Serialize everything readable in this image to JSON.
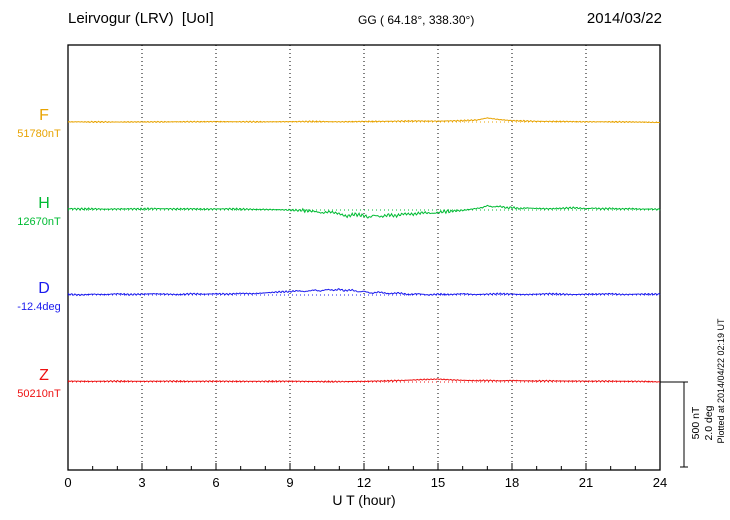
{
  "chart_data": {
    "type": "line",
    "title": "Leirvogur (LRV)  [UoI]",
    "subtitle_coords": "GG ( 64.18°, 338.30°)",
    "date": "2014/03/22",
    "plotted_note": "Plotted at 2014/04/22 02:19 UT",
    "xlabel": "U T (hour)",
    "x_range": [
      0,
      24
    ],
    "x_ticks": [
      0,
      3,
      6,
      9,
      12,
      15,
      18,
      21,
      24
    ],
    "grid": "dotted-vertical-every-3h",
    "legend_position": "left-of-traces",
    "scale_bar": {
      "line1": "500 nT",
      "line2": "2.0 deg",
      "nT": 500,
      "deg": 2.0
    },
    "series": [
      {
        "name": "F",
        "unit": "nT",
        "baseline": 51780,
        "value_label": "51780nT",
        "color": "#e8a300",
        "points": [
          [
            0,
            1
          ],
          [
            2,
            0
          ],
          [
            4,
            1
          ],
          [
            6,
            2
          ],
          [
            8,
            1
          ],
          [
            10,
            3
          ],
          [
            11,
            1
          ],
          [
            12,
            3
          ],
          [
            13,
            4
          ],
          [
            14,
            6
          ],
          [
            15,
            5
          ],
          [
            16,
            8
          ],
          [
            16.6,
            12
          ],
          [
            17,
            24
          ],
          [
            17.5,
            14
          ],
          [
            18,
            8
          ],
          [
            19,
            4
          ],
          [
            20,
            3
          ],
          [
            21,
            1
          ],
          [
            22,
            1
          ],
          [
            23,
            0
          ],
          [
            24,
            -3
          ]
        ]
      },
      {
        "name": "H",
        "unit": "nT",
        "baseline": 12670,
        "value_label": "12670nT",
        "color": "#00bb33",
        "points": [
          [
            0,
            8
          ],
          [
            0.5,
            6
          ],
          [
            1,
            7
          ],
          [
            1.5,
            5
          ],
          [
            2,
            6
          ],
          [
            2.5,
            7
          ],
          [
            3,
            6
          ],
          [
            3.5,
            8
          ],
          [
            4,
            7
          ],
          [
            4.5,
            6
          ],
          [
            5,
            7
          ],
          [
            5.5,
            5
          ],
          [
            6,
            6
          ],
          [
            6.5,
            7
          ],
          [
            7,
            5
          ],
          [
            7.5,
            4
          ],
          [
            8,
            3
          ],
          [
            8.5,
            2
          ],
          [
            9,
            0
          ],
          [
            9.5,
            -3
          ],
          [
            10,
            -8
          ],
          [
            10.3,
            -18
          ],
          [
            10.6,
            -10
          ],
          [
            11,
            -22
          ],
          [
            11.3,
            -38
          ],
          [
            11.6,
            -25
          ],
          [
            12,
            -33
          ],
          [
            12.2,
            -45
          ],
          [
            12.4,
            -30
          ],
          [
            12.7,
            -40
          ],
          [
            13,
            -28
          ],
          [
            13.3,
            -35
          ],
          [
            13.6,
            -22
          ],
          [
            14,
            -25
          ],
          [
            14.4,
            -15
          ],
          [
            14.8,
            -20
          ],
          [
            15.2,
            -10
          ],
          [
            15.6,
            -6
          ],
          [
            16,
            -2
          ],
          [
            16.4,
            6
          ],
          [
            16.8,
            14
          ],
          [
            17,
            26
          ],
          [
            17.2,
            18
          ],
          [
            17.5,
            22
          ],
          [
            17.8,
            12
          ],
          [
            18,
            15
          ],
          [
            18.3,
            8
          ],
          [
            18.6,
            12
          ],
          [
            19,
            9
          ],
          [
            19.5,
            7
          ],
          [
            20,
            10
          ],
          [
            20.5,
            13
          ],
          [
            21,
            8
          ],
          [
            21.3,
            11
          ],
          [
            21.6,
            7
          ],
          [
            22,
            9
          ],
          [
            22.4,
            6
          ],
          [
            22.8,
            8
          ],
          [
            23.2,
            5
          ],
          [
            23.6,
            6
          ],
          [
            24,
            3
          ]
        ]
      },
      {
        "name": "D",
        "unit": "deg",
        "baseline": -12.4,
        "value_label": "-12.4deg",
        "color": "#1a1aee",
        "points": [
          [
            0,
            0.02
          ],
          [
            0.5,
            0.0
          ],
          [
            1,
            0.02
          ],
          [
            1.5,
            0.01
          ],
          [
            2,
            0.03
          ],
          [
            2.5,
            0.01
          ],
          [
            3,
            0.02
          ],
          [
            3.5,
            0.03
          ],
          [
            4,
            0.02
          ],
          [
            4.5,
            0.01
          ],
          [
            5,
            0.03
          ],
          [
            5.5,
            0.02
          ],
          [
            6,
            0.03
          ],
          [
            6.5,
            0.02
          ],
          [
            7,
            0.04
          ],
          [
            7.5,
            0.03
          ],
          [
            8,
            0.05
          ],
          [
            8.5,
            0.07
          ],
          [
            9,
            0.08
          ],
          [
            9.3,
            0.1
          ],
          [
            9.6,
            0.08
          ],
          [
            10,
            0.12
          ],
          [
            10.2,
            0.09
          ],
          [
            10.5,
            0.13
          ],
          [
            10.8,
            0.11
          ],
          [
            11,
            0.14
          ],
          [
            11.2,
            0.1
          ],
          [
            11.5,
            0.12
          ],
          [
            11.8,
            0.07
          ],
          [
            12,
            0.09
          ],
          [
            12.3,
            0.04
          ],
          [
            12.6,
            0.07
          ],
          [
            13,
            0.03
          ],
          [
            13.4,
            0.05
          ],
          [
            13.8,
            0.01
          ],
          [
            14.2,
            0.03
          ],
          [
            14.6,
            0.0
          ],
          [
            15,
            0.02
          ],
          [
            15.5,
            0.01
          ],
          [
            16,
            0.03
          ],
          [
            16.5,
            0.01
          ],
          [
            17,
            0.02
          ],
          [
            17.5,
            0.03
          ],
          [
            18,
            0.02
          ],
          [
            18.5,
            0.01
          ],
          [
            19,
            0.02
          ],
          [
            19.5,
            0.03
          ],
          [
            20,
            0.02
          ],
          [
            20.5,
            0.01
          ],
          [
            21,
            0.02
          ],
          [
            21.5,
            0.02
          ],
          [
            22,
            0.03
          ],
          [
            22.5,
            0.01
          ],
          [
            23,
            0.02
          ],
          [
            23.5,
            0.02
          ],
          [
            24,
            0.02
          ]
        ]
      },
      {
        "name": "Z",
        "unit": "nT",
        "baseline": 50210,
        "value_label": "50210nT",
        "color": "#ee1111",
        "points": [
          [
            0,
            5
          ],
          [
            1,
            4
          ],
          [
            2,
            5
          ],
          [
            3,
            4
          ],
          [
            4,
            5
          ],
          [
            5,
            4
          ],
          [
            6,
            5
          ],
          [
            7,
            4
          ],
          [
            8,
            4
          ],
          [
            9,
            5
          ],
          [
            10,
            3
          ],
          [
            11,
            2
          ],
          [
            12,
            4
          ],
          [
            13,
            7
          ],
          [
            13.5,
            9
          ],
          [
            14,
            12
          ],
          [
            14.5,
            15
          ],
          [
            15,
            17
          ],
          [
            15.5,
            13
          ],
          [
            16,
            10
          ],
          [
            16.5,
            8
          ],
          [
            17,
            9
          ],
          [
            17.5,
            7
          ],
          [
            18,
            9
          ],
          [
            18.5,
            7
          ],
          [
            19,
            6
          ],
          [
            19.5,
            7
          ],
          [
            20,
            6
          ],
          [
            21,
            5
          ],
          [
            22,
            5
          ],
          [
            23,
            4
          ],
          [
            23.5,
            3
          ],
          [
            24,
            0
          ]
        ]
      }
    ]
  }
}
